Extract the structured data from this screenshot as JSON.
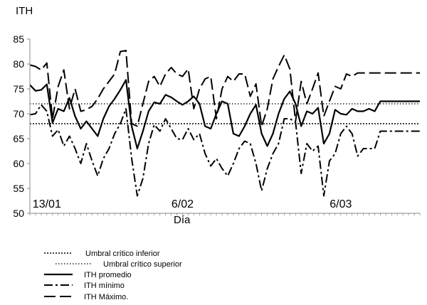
{
  "chart_data": {
    "type": "line",
    "ylabel": "ITH",
    "xlabel": "Día",
    "ylim": [
      50,
      85
    ],
    "yticks": [
      50,
      55,
      60,
      65,
      70,
      75,
      80,
      85
    ],
    "grid": false,
    "legend_position": "bottom-left",
    "x_tick_labels": [
      {
        "day": 3,
        "label": "13/01"
      },
      {
        "day": 27,
        "label": "6/02"
      },
      {
        "day": 55,
        "label": "6/03"
      }
    ],
    "x_range": [
      0,
      69
    ],
    "series": [
      {
        "name": "Umbral crítico inferior",
        "style": "dotted-dense",
        "x": [
          0,
          69
        ],
        "values": [
          68,
          68
        ]
      },
      {
        "name": "Umbral crítico superior",
        "style": "dotted-fine",
        "x": [
          0,
          69
        ],
        "values": [
          72,
          72
        ]
      },
      {
        "name": "ITH promedio",
        "style": "solid",
        "x": [
          0,
          1,
          2,
          3,
          4,
          5,
          6,
          7,
          8,
          9,
          10,
          11,
          12,
          13,
          14,
          15,
          16,
          17,
          18,
          19,
          20,
          21,
          22,
          23,
          24,
          25,
          26,
          27,
          28,
          29,
          30,
          31,
          32,
          33,
          34,
          35,
          36,
          37,
          38,
          39,
          40,
          41,
          42,
          43,
          44,
          45,
          46,
          47,
          48,
          49,
          50,
          51,
          52,
          53,
          54,
          55,
          56,
          57,
          58,
          59,
          60,
          61,
          62,
          63,
          64,
          65,
          66,
          67,
          68,
          69
        ],
        "values": [
          75.8,
          74.6,
          74.8,
          75.9,
          68.2,
          71,
          70.5,
          73.2,
          69.5,
          67,
          68.5,
          67,
          65.5,
          69,
          71.5,
          73,
          74.8,
          76.8,
          67.5,
          63,
          66.5,
          70.5,
          72.3,
          72,
          73.8,
          73.3,
          72.5,
          71.8,
          72.5,
          73.5,
          72,
          67.5,
          67,
          70,
          72.5,
          72,
          66,
          65.5,
          67.5,
          70,
          71.8,
          66,
          63.5,
          66,
          70,
          73,
          74.5,
          72,
          67.5,
          70.5,
          70,
          71.2,
          64,
          66,
          70.8,
          70,
          69.8,
          71,
          70.5,
          70.5,
          71,
          70.5,
          72.5,
          72.5,
          72.5,
          72.5,
          72.5,
          72.5,
          72.5,
          72.5
        ]
      },
      {
        "name": "ITH mínimo",
        "style": "dash-dot",
        "x": [
          0,
          1,
          2,
          3,
          4,
          5,
          6,
          7,
          8,
          9,
          10,
          11,
          12,
          13,
          14,
          15,
          16,
          17,
          18,
          19,
          20,
          21,
          22,
          23,
          24,
          25,
          26,
          27,
          28,
          29,
          30,
          31,
          32,
          33,
          34,
          35,
          36,
          37,
          38,
          39,
          40,
          41,
          42,
          43,
          44,
          45,
          46,
          47,
          48,
          49,
          50,
          51,
          52,
          53,
          54,
          55,
          56,
          57,
          58,
          59,
          60,
          61,
          62,
          63,
          64,
          65,
          66,
          67,
          68,
          69
        ],
        "values": [
          69.8,
          70,
          71.8,
          70.5,
          65.5,
          66.8,
          63.5,
          65.5,
          63,
          60,
          64,
          60.5,
          57.5,
          61,
          63,
          66,
          68,
          71,
          61,
          53.5,
          57,
          64,
          67.8,
          66.5,
          69,
          67,
          65,
          64.8,
          67,
          64.8,
          66,
          62,
          59.5,
          61,
          59,
          57.5,
          60,
          63,
          64.5,
          64,
          60,
          54.5,
          59,
          62,
          64,
          69,
          69,
          68.3,
          58,
          64,
          62.5,
          63.5,
          53.5,
          60.5,
          62,
          66,
          67.5,
          66,
          61.5,
          63,
          63,
          63,
          66.5,
          66.5,
          66.5,
          66.5,
          66.5,
          66.5,
          66.5,
          66.5
        ]
      },
      {
        "name": "ITH Máximo.",
        "style": "long-dash",
        "x": [
          0,
          1,
          2,
          3,
          4,
          5,
          6,
          7,
          8,
          9,
          10,
          11,
          12,
          13,
          14,
          15,
          16,
          17,
          18,
          19,
          20,
          21,
          22,
          23,
          24,
          25,
          26,
          27,
          28,
          29,
          30,
          31,
          32,
          33,
          34,
          35,
          36,
          37,
          38,
          39,
          40,
          41,
          42,
          43,
          44,
          45,
          46,
          47,
          48,
          49,
          50,
          51,
          52,
          53,
          54,
          55,
          56,
          57,
          58,
          59,
          60,
          61,
          62,
          63,
          64,
          65,
          66,
          67,
          68,
          69
        ],
        "values": [
          79.8,
          79.5,
          78.8,
          80.2,
          69,
          75.5,
          78.8,
          71,
          75,
          70.5,
          70.8,
          71.5,
          73,
          75,
          76.5,
          78,
          82.5,
          82.7,
          68,
          67.5,
          72,
          76.5,
          77.5,
          75.5,
          78,
          79.3,
          78,
          77.5,
          79,
          71,
          75,
          77,
          77.5,
          69,
          75,
          77.5,
          76.5,
          78,
          78,
          73.5,
          76,
          67.5,
          71,
          77,
          79.5,
          81.8,
          79,
          68.5,
          76.5,
          72,
          75,
          78.2,
          69.5,
          72.5,
          75.5,
          75,
          78,
          77.5,
          78.2,
          78.2,
          78.2,
          78.2,
          78.2,
          78.2,
          78.2,
          78.2,
          78.2,
          78.2,
          78.2,
          78.2
        ]
      }
    ]
  }
}
